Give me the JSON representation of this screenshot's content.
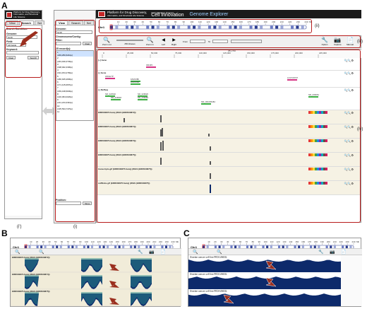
{
  "figure": {
    "labels": {
      "a": "A",
      "b": "B",
      "c": "C"
    },
    "callouts": {
      "i_prime": "(i')",
      "i": "(i)",
      "ii": "(ii)",
      "iii": "(iii)",
      "iv": "(iv)"
    }
  },
  "header": {
    "title_line1": "Platform for Drug Discovery,",
    "title_line2": "Informatics, and Structural Life Science",
    "brand": "Cell Innovation",
    "app_name": "Genome Explorer",
    "small_text": "Cell Innovation Program"
  },
  "search_panel": {
    "tabs": [
      "View",
      "Search",
      "Set"
    ],
    "active_tab": "Search",
    "condition_label": "Search Condition:",
    "genome_label": "Genome:",
    "genome_value": "hg19",
    "field_label": "Field:",
    "field_value": "All Fields",
    "keyword_label": "Keyword:",
    "keyword_value": "",
    "clear_label": "Clear",
    "search_label": "Search"
  },
  "view_panel": {
    "tabs": [
      "View",
      "Search",
      "Set"
    ],
    "active_tab": "View",
    "genome_label": "Genome:",
    "genome_value": "hg19",
    "chrom_label": "Chromosome/Contig:",
    "filter_label": "Filter:",
    "clear_label": "Clear",
    "records_label": "25 record(s):",
    "chromosomes": [
      "1",
      "(249,250,621bp)",
      "2",
      "(243,199,373bp)",
      "3",
      "(198,022,430bp)",
      "4",
      "(191,154,276bp)",
      "5",
      "(180,915,260bp)",
      "6",
      "(171,115,067bp)",
      "7",
      "(159,138,663bp)",
      "8",
      "(146,364,022bp)",
      "9",
      "(141,213,431bp)",
      "10",
      "(135,534,747bp)",
      "11"
    ],
    "position_label": "Position:",
    "move_label": "Move"
  },
  "browser_main": {
    "chr_label": "Chr1",
    "ideogram_ticks": [
      "10",
      "20",
      "30",
      "40",
      "50",
      "60",
      "70",
      "80",
      "90",
      "100",
      "110",
      "120",
      "130",
      "140",
      "150",
      "160",
      "170",
      "180",
      "190",
      "200",
      "210",
      "220",
      "230",
      "240"
    ],
    "ideogram_unit": "Mb",
    "toolbar": {
      "zoom_out": "Zoom out",
      "zoom_select": "250 kbases",
      "zoom_in": "Zoom in",
      "left": "Left",
      "right": "Right",
      "from_label": "From",
      "to_label": "To",
      "options": "Option",
      "capture": "Capture",
      "manual": "Manual"
    },
    "ruler_ticks": [
      "0",
      "25,000",
      "50,000",
      "75,000",
      "100,000",
      "125,000",
      "150,000",
      "175,000",
      "200,000",
      "225,000"
    ],
    "ruler_extra": "251,733",
    "tracks": [
      {
        "name": "[+] Gene",
        "genes": [
          "OR4F5"
        ]
      },
      {
        "name": "[-] Gene",
        "genes": [
          "WASH7P",
          "FAM138F",
          "FAM138A",
          "LOC729737"
        ]
      },
      {
        "name": "[-] RefSeq",
        "genes": [
          "NR_024540",
          "NR_026818",
          "NR_026820",
          "NR_039983",
          "NM_001005484",
          "NR_036051"
        ]
      },
      {
        "name": "ERR030872.fastq (WGS (ERR030872))"
      },
      {
        "name": "ERR030874.fastq (WGS (ERR030874))"
      },
      {
        "name": "ERR030873.fastq (WGS (ERR030873))"
      },
      {
        "name": "ERR030875.fastq (WGS (ERR030875))"
      },
      {
        "name": "transcripts.gtf (ERR030875.fastq) (WGS (ERR030875))"
      },
      {
        "name": "cufflinks.gtf (ERR030875.fastq) (WGS (ERR030875))"
      }
    ]
  },
  "panel_b": {
    "chr_label": "Chr1",
    "tracks": [
      "ERR030872.fastq (WGS (ERR030872))",
      "ERR030874.fastq (WGS (ERR030874))",
      "ERR030875.fastq (WGS (ERR030875))"
    ]
  },
  "panel_c": {
    "chr_label": "Chr1",
    "tracks": [
      "Ovarian cancer cell line PEO1 (WGS)",
      "Ovarian cancer cell line PEO1 (WGS)",
      "Ovarian cancer cell line PEO4 (WGS)"
    ]
  },
  "colors": {
    "header_bg": "#1b1b1b",
    "accent_red": "#b71c1c",
    "arrow_red": "#9b2f1f",
    "coverage_dark": "#0d2a6b",
    "coverage_teal": "#2e8b8b",
    "coverage_yellow": "#e8d36a",
    "gene_pink": "#d63384",
    "gene_green": "#3cb043"
  }
}
